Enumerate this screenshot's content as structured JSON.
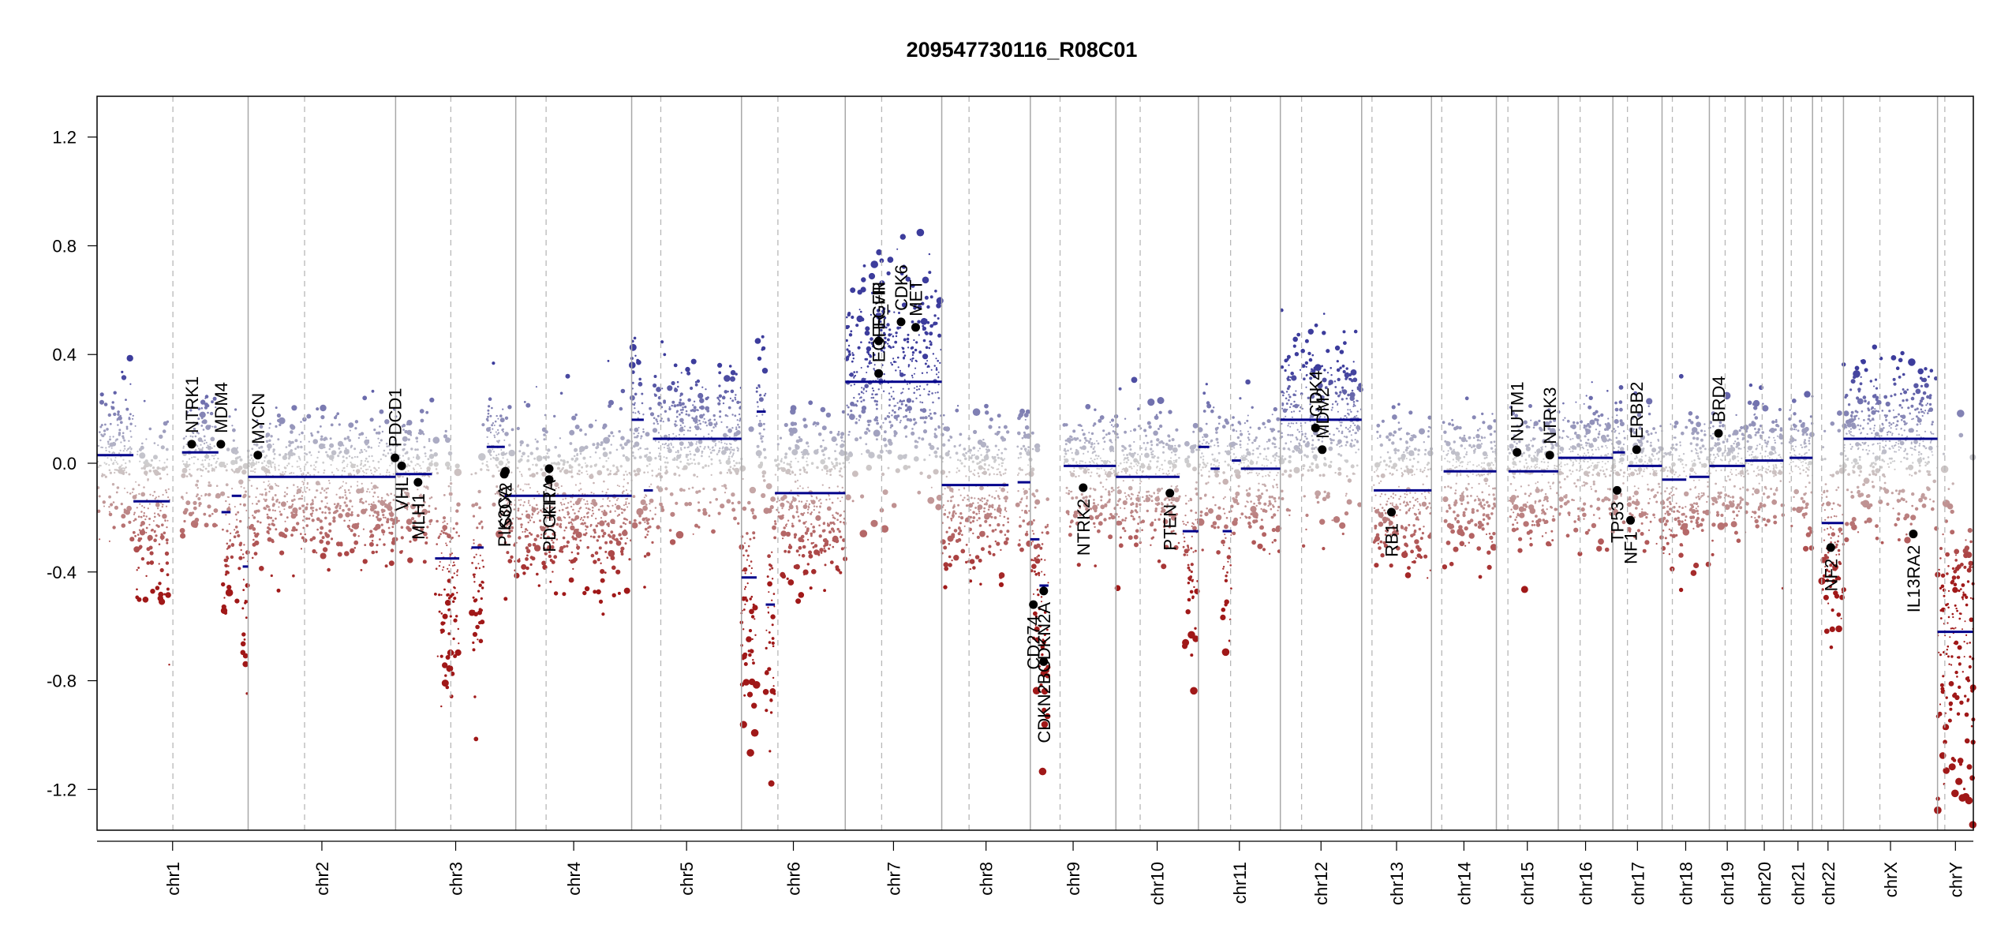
{
  "chart_data": {
    "type": "scatter",
    "title": "209547730116_R08C01",
    "xlabel": "",
    "ylabel": "",
    "ylim": [
      -1.35,
      1.35
    ],
    "y_ticks": [
      1.2,
      0.8,
      0.4,
      0.0,
      -0.4,
      -0.8,
      -1.2
    ],
    "y_tick_labels": [
      "1.2",
      "0.8",
      "0.4",
      "0.0",
      "-0.4",
      "-0.8",
      "-1.2"
    ],
    "grid": false,
    "colors": {
      "gain": "#3c3c9c",
      "neutral": "#cfcfcf",
      "loss": "#a01818",
      "segment": "#00008b",
      "gene_point": "#000000"
    },
    "chromosomes": [
      {
        "name": "chr1",
        "len": 249,
        "cen": 125
      },
      {
        "name": "chr2",
        "len": 243,
        "cen": 93
      },
      {
        "name": "chr3",
        "len": 198,
        "cen": 91
      },
      {
        "name": "chr4",
        "len": 191,
        "cen": 50
      },
      {
        "name": "chr5",
        "len": 181,
        "cen": 48
      },
      {
        "name": "chr6",
        "len": 171,
        "cen": 60
      },
      {
        "name": "chr7",
        "len": 159,
        "cen": 60
      },
      {
        "name": "chr8",
        "len": 146,
        "cen": 45
      },
      {
        "name": "chr9",
        "len": 141,
        "cen": 49
      },
      {
        "name": "chr10",
        "len": 136,
        "cen": 40
      },
      {
        "name": "chr11",
        "len": 135,
        "cen": 53
      },
      {
        "name": "chr12",
        "len": 134,
        "cen": 35
      },
      {
        "name": "chr13",
        "len": 115,
        "cen": 17
      },
      {
        "name": "chr14",
        "len": 107,
        "cen": 17
      },
      {
        "name": "chr15",
        "len": 102,
        "cen": 19
      },
      {
        "name": "chr16",
        "len": 90,
        "cen": 36
      },
      {
        "name": "chr17",
        "len": 81,
        "cen": 24
      },
      {
        "name": "chr18",
        "len": 78,
        "cen": 17
      },
      {
        "name": "chr19",
        "len": 59,
        "cen": 26
      },
      {
        "name": "chr20",
        "len": 63,
        "cen": 28
      },
      {
        "name": "chr21",
        "len": 48,
        "cen": 13
      },
      {
        "name": "chr22",
        "len": 51,
        "cen": 15
      },
      {
        "name": "chrX",
        "len": 155,
        "cen": 60
      },
      {
        "name": "chrY",
        "len": 59,
        "cen": 12
      }
    ],
    "segments": [
      {
        "chr": "chr1",
        "start": 0,
        "end": 60,
        "value": 0.03
      },
      {
        "chr": "chr1",
        "start": 60,
        "end": 120,
        "value": -0.14
      },
      {
        "chr": "chr1",
        "start": 140,
        "end": 200,
        "value": 0.04
      },
      {
        "chr": "chr1",
        "start": 205,
        "end": 220,
        "value": -0.18
      },
      {
        "chr": "chr1",
        "start": 222,
        "end": 238,
        "value": -0.12
      },
      {
        "chr": "chr1",
        "start": 240,
        "end": 249,
        "value": -0.38
      },
      {
        "chr": "chr2",
        "start": 0,
        "end": 243,
        "value": -0.05
      },
      {
        "chr": "chr3",
        "start": 0,
        "end": 60,
        "value": -0.04
      },
      {
        "chr": "chr3",
        "start": 65,
        "end": 105,
        "value": -0.35
      },
      {
        "chr": "chr3",
        "start": 125,
        "end": 145,
        "value": -0.31
      },
      {
        "chr": "chr3",
        "start": 150,
        "end": 180,
        "value": 0.06
      },
      {
        "chr": "chr3",
        "start": 180,
        "end": 198,
        "value": -0.12
      },
      {
        "chr": "chr4",
        "start": 0,
        "end": 191,
        "value": -0.12
      },
      {
        "chr": "chr5",
        "start": 0,
        "end": 20,
        "value": 0.16
      },
      {
        "chr": "chr5",
        "start": 20,
        "end": 35,
        "value": -0.1
      },
      {
        "chr": "chr5",
        "start": 35,
        "end": 181,
        "value": 0.09
      },
      {
        "chr": "chr6",
        "start": 0,
        "end": 25,
        "value": -0.42
      },
      {
        "chr": "chr6",
        "start": 25,
        "end": 40,
        "value": 0.19
      },
      {
        "chr": "chr6",
        "start": 40,
        "end": 55,
        "value": -0.52
      },
      {
        "chr": "chr6",
        "start": 55,
        "end": 171,
        "value": -0.11
      },
      {
        "chr": "chr7",
        "start": 0,
        "end": 159,
        "value": 0.3
      },
      {
        "chr": "chr8",
        "start": 0,
        "end": 110,
        "value": -0.08
      },
      {
        "chr": "chr8",
        "start": 125,
        "end": 146,
        "value": -0.07
      },
      {
        "chr": "chr9",
        "start": 0,
        "end": 15,
        "value": -0.28
      },
      {
        "chr": "chr9",
        "start": 15,
        "end": 30,
        "value": -0.45
      },
      {
        "chr": "chr9",
        "start": 55,
        "end": 141,
        "value": -0.01
      },
      {
        "chr": "chr10",
        "start": 0,
        "end": 25,
        "value": -0.05
      },
      {
        "chr": "chr10",
        "start": 25,
        "end": 105,
        "value": -0.05
      },
      {
        "chr": "chr10",
        "start": 110,
        "end": 136,
        "value": -0.25
      },
      {
        "chr": "chr11",
        "start": 0,
        "end": 18,
        "value": 0.06
      },
      {
        "chr": "chr11",
        "start": 20,
        "end": 35,
        "value": -0.02
      },
      {
        "chr": "chr11",
        "start": 40,
        "end": 55,
        "value": -0.25
      },
      {
        "chr": "chr11",
        "start": 55,
        "end": 70,
        "value": 0.01
      },
      {
        "chr": "chr11",
        "start": 70,
        "end": 135,
        "value": -0.02
      },
      {
        "chr": "chr12",
        "start": 0,
        "end": 134,
        "value": 0.16
      },
      {
        "chr": "chr13",
        "start": 20,
        "end": 115,
        "value": -0.1
      },
      {
        "chr": "chr14",
        "start": 20,
        "end": 107,
        "value": -0.03
      },
      {
        "chr": "chr15",
        "start": 20,
        "end": 102,
        "value": -0.03
      },
      {
        "chr": "chr16",
        "start": 0,
        "end": 90,
        "value": 0.02
      },
      {
        "chr": "chr17",
        "start": 0,
        "end": 20,
        "value": 0.04
      },
      {
        "chr": "chr17",
        "start": 25,
        "end": 81,
        "value": -0.01
      },
      {
        "chr": "chr18",
        "start": 0,
        "end": 40,
        "value": -0.06
      },
      {
        "chr": "chr18",
        "start": 45,
        "end": 78,
        "value": -0.05
      },
      {
        "chr": "chr19",
        "start": 0,
        "end": 59,
        "value": -0.01
      },
      {
        "chr": "chr20",
        "start": 0,
        "end": 63,
        "value": 0.01
      },
      {
        "chr": "chr21",
        "start": 10,
        "end": 48,
        "value": 0.02
      },
      {
        "chr": "chr22",
        "start": 15,
        "end": 51,
        "value": -0.22
      },
      {
        "chr": "chrX",
        "start": 0,
        "end": 155,
        "value": 0.09
      },
      {
        "chr": "chrY",
        "start": 0,
        "end": 59,
        "value": -0.62
      }
    ],
    "genes": [
      {
        "name": "NTRK1",
        "chr": "chr1",
        "pos": 156,
        "value": 0.07
      },
      {
        "name": "MDM4",
        "chr": "chr1",
        "pos": 204,
        "value": 0.07
      },
      {
        "name": "MYCN",
        "chr": "chr2",
        "pos": 16,
        "value": 0.03
      },
      {
        "name": "PDCD1",
        "chr": "chr2",
        "pos": 242,
        "value": 0.02
      },
      {
        "name": "VHL",
        "chr": "chr3",
        "pos": 10,
        "value": -0.01
      },
      {
        "name": "MLH1",
        "chr": "chr3",
        "pos": 37,
        "value": -0.07
      },
      {
        "name": "SOX2",
        "chr": "chr3",
        "pos": 181,
        "value": -0.03
      },
      {
        "name": "PIK3CA",
        "chr": "chr3",
        "pos": 179,
        "value": -0.04
      },
      {
        "name": "PDGFRA",
        "chr": "chr4",
        "pos": 55,
        "value": -0.02
      },
      {
        "name": "KIT",
        "chr": "chr4",
        "pos": 55,
        "value": -0.06
      },
      {
        "name": "EGFR",
        "chr": "chr7",
        "pos": 55,
        "value": 0.45
      },
      {
        "name": "EGFR_vIII",
        "chr": "chr7",
        "pos": 55,
        "value": 0.33
      },
      {
        "name": "CDK6",
        "chr": "chr7",
        "pos": 92,
        "value": 0.52
      },
      {
        "name": "MET",
        "chr": "chr7",
        "pos": 116,
        "value": 0.5
      },
      {
        "name": "CD274",
        "chr": "chr9",
        "pos": 5,
        "value": -0.52
      },
      {
        "name": "CDKN2A",
        "chr": "chr9",
        "pos": 22,
        "value": -0.47
      },
      {
        "name": "CDKN2B",
        "chr": "chr9",
        "pos": 22,
        "value": -0.73
      },
      {
        "name": "NTRK2",
        "chr": "chr9",
        "pos": 87,
        "value": -0.09
      },
      {
        "name": "PTEN",
        "chr": "chr10",
        "pos": 89,
        "value": -0.11
      },
      {
        "name": "CDK4",
        "chr": "chr12",
        "pos": 58,
        "value": 0.13
      },
      {
        "name": "MDM2",
        "chr": "chr12",
        "pos": 69,
        "value": 0.05
      },
      {
        "name": "RB1",
        "chr": "chr13",
        "pos": 49,
        "value": -0.18
      },
      {
        "name": "NUTM1",
        "chr": "chr15",
        "pos": 34,
        "value": 0.04
      },
      {
        "name": "NTRK3",
        "chr": "chr15",
        "pos": 88,
        "value": 0.03
      },
      {
        "name": "TP53",
        "chr": "chr17",
        "pos": 7,
        "value": -0.1
      },
      {
        "name": "NF1",
        "chr": "chr17",
        "pos": 29,
        "value": -0.21
      },
      {
        "name": "ERBB2",
        "chr": "chr17",
        "pos": 39,
        "value": 0.05
      },
      {
        "name": "BRD4",
        "chr": "chr19",
        "pos": 15,
        "value": 0.11
      },
      {
        "name": "NF2",
        "chr": "chr22",
        "pos": 30,
        "value": -0.31
      },
      {
        "name": "IL13RA2",
        "chr": "chrX",
        "pos": 115,
        "value": -0.26
      }
    ]
  }
}
